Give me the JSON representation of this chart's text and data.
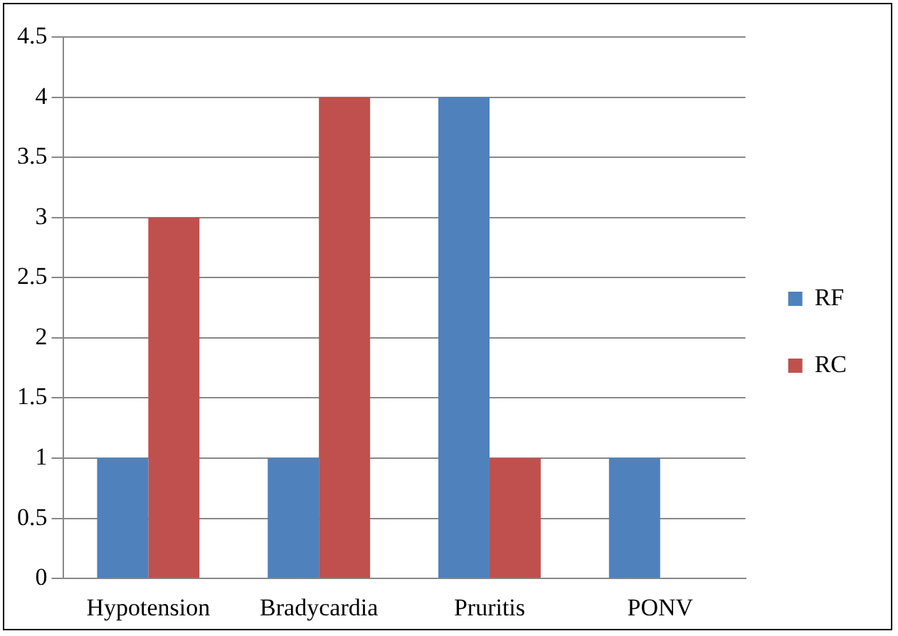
{
  "chart_data": {
    "type": "bar",
    "categories": [
      "Hypotension",
      "Bradycardia",
      "Pruritis",
      "PONV"
    ],
    "series": [
      {
        "name": "RF",
        "color": "#4f81bd",
        "values": [
          1,
          1,
          4,
          1
        ]
      },
      {
        "name": "RC",
        "color": "#c0504d",
        "values": [
          3,
          4,
          1,
          0
        ]
      }
    ],
    "ylim": [
      0,
      4.5
    ],
    "yticks": [
      0,
      0.5,
      1,
      1.5,
      2,
      2.5,
      3,
      3.5,
      4,
      4.5
    ],
    "grid": "y",
    "legend": "right"
  }
}
